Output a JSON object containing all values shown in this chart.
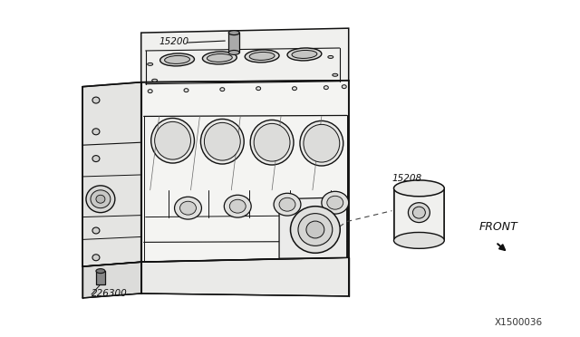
{
  "background_color": "#ffffff",
  "diagram_number": "X1500036",
  "labels": {
    "part1": "15200",
    "part2": "15208",
    "part3": "226300"
  },
  "front_label": "FRONT",
  "text_color": "#111111",
  "line_color": "#111111",
  "dashed_color": "#444444",
  "figsize": [
    6.4,
    3.72
  ],
  "dpi": 100
}
